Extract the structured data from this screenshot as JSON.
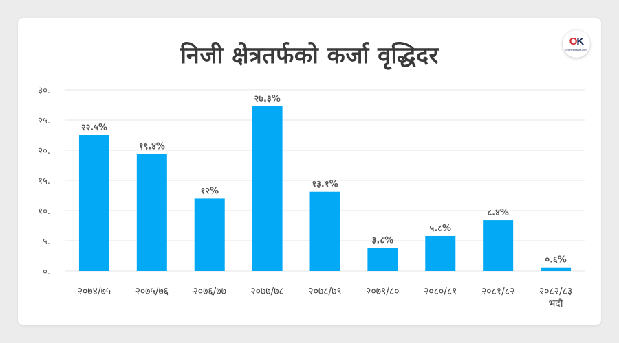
{
  "title": "निजी क्षेत्रतर्फको कर्जा वृद्धिदर",
  "logo": {
    "name": "onlinekhabar-logo",
    "mark_o": "O",
    "mark_k": "K",
    "subtext": "onlinekhabar.com"
  },
  "colors": {
    "bar": "#03a9f4",
    "grid": "#e6e6e6",
    "title": "#3a3a3a"
  },
  "chart_data": {
    "type": "bar",
    "title": "निजी क्षेत्रतर्फको कर्जा वृद्धिदर",
    "xlabel": "",
    "ylabel": "",
    "ylim": [
      0,
      30
    ],
    "grid": true,
    "yticks": [
      {
        "value": 0,
        "label": "०."
      },
      {
        "value": 5,
        "label": "५."
      },
      {
        "value": 10,
        "label": "१०."
      },
      {
        "value": 15,
        "label": "१५."
      },
      {
        "value": 20,
        "label": "२०."
      },
      {
        "value": 25,
        "label": "२५."
      },
      {
        "value": 30,
        "label": "३०."
      }
    ],
    "categories": [
      [
        "२०७४/७५"
      ],
      [
        "२०७५/७६"
      ],
      [
        "२०७६/७७"
      ],
      [
        "२०७७/७८"
      ],
      [
        "२०७८/७९"
      ],
      [
        "२०७९/८०"
      ],
      [
        "२०८०/८१"
      ],
      [
        "२०८१/८२"
      ],
      [
        "२०८२/८३",
        "भदौ"
      ]
    ],
    "values": [
      22.5,
      19.4,
      12,
      27.3,
      13.1,
      3.8,
      5.8,
      8.4,
      0.6
    ],
    "data_labels": [
      "२२.५%",
      "१९.४%",
      "१२%",
      "२७.३%",
      "१३.१%",
      "३.८%",
      "५.८%",
      "८.४%",
      "०.६%"
    ]
  }
}
